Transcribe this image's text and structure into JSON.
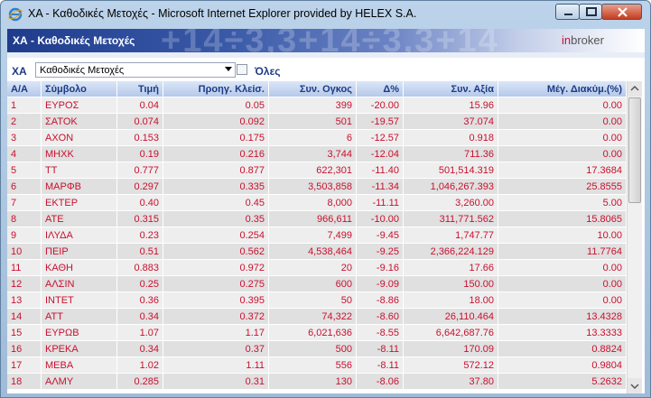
{
  "window": {
    "title": "ΧΑ - Καθοδικές Μετοχές - Microsoft Internet Explorer provided by HELEX S.A."
  },
  "banner": {
    "title": "ΧΑ - Καθοδικές Μετοχές",
    "brand_in": "in",
    "brand_broker": "broker"
  },
  "filter": {
    "label": "ΧΑ",
    "select_value": "Καθοδικές Μετοχές",
    "all_label": "Όλες",
    "all_checked": false
  },
  "table": {
    "columns": [
      "Α/Α",
      "Σύμβολο",
      "Τιμή",
      "Προηγ. Κλείσ.",
      "Συν. Ογκος",
      "Δ%",
      "Συν. Αξία",
      "Μέγ. Διακύμ.(%)"
    ],
    "rows": [
      [
        "1",
        "ΕΥΡΟΣ",
        "0.04",
        "0.05",
        "399",
        "-20.00",
        "15.96",
        "0.00"
      ],
      [
        "2",
        "ΣΑΤΟΚ",
        "0.074",
        "0.092",
        "501",
        "-19.57",
        "37.074",
        "0.00"
      ],
      [
        "3",
        "ΑΧΟΝ",
        "0.153",
        "0.175",
        "6",
        "-12.57",
        "0.918",
        "0.00"
      ],
      [
        "4",
        "ΜΗΧΚ",
        "0.19",
        "0.216",
        "3,744",
        "-12.04",
        "711.36",
        "0.00"
      ],
      [
        "5",
        "ΤΤ",
        "0.777",
        "0.877",
        "622,301",
        "-11.40",
        "501,514.319",
        "17.3684"
      ],
      [
        "6",
        "ΜΑΡΦΒ",
        "0.297",
        "0.335",
        "3,503,858",
        "-11.34",
        "1,046,267.393",
        "25.8555"
      ],
      [
        "7",
        "ΕΚΤΕΡ",
        "0.40",
        "0.45",
        "8,000",
        "-11.11",
        "3,260.00",
        "5.00"
      ],
      [
        "8",
        "ΑΤΕ",
        "0.315",
        "0.35",
        "966,611",
        "-10.00",
        "311,771.562",
        "15.8065"
      ],
      [
        "9",
        "ΙΛΥΔΑ",
        "0.23",
        "0.254",
        "7,499",
        "-9.45",
        "1,747.77",
        "10.00"
      ],
      [
        "10",
        "ΠΕΙΡ",
        "0.51",
        "0.562",
        "4,538,464",
        "-9.25",
        "2,366,224.129",
        "11.7764"
      ],
      [
        "11",
        "ΚΑΘΗ",
        "0.883",
        "0.972",
        "20",
        "-9.16",
        "17.66",
        "0.00"
      ],
      [
        "12",
        "ΑΛΣΙΝ",
        "0.25",
        "0.275",
        "600",
        "-9.09",
        "150.00",
        "0.00"
      ],
      [
        "13",
        "ΙΝΤΕΤ",
        "0.36",
        "0.395",
        "50",
        "-8.86",
        "18.00",
        "0.00"
      ],
      [
        "14",
        "ΑΤΤ",
        "0.34",
        "0.372",
        "74,322",
        "-8.60",
        "26,110.464",
        "13.4328"
      ],
      [
        "15",
        "ΕΥΡΩΒ",
        "1.07",
        "1.17",
        "6,021,636",
        "-8.55",
        "6,642,687.76",
        "13.3333"
      ],
      [
        "16",
        "ΚΡΕΚΑ",
        "0.34",
        "0.37",
        "500",
        "-8.11",
        "170.09",
        "0.8824"
      ],
      [
        "17",
        "ΜΕΒΑ",
        "1.02",
        "1.11",
        "556",
        "-8.11",
        "572.12",
        "0.9804"
      ],
      [
        "18",
        "ΑΛΜΥ",
        "0.285",
        "0.31",
        "130",
        "-8.06",
        "37.80",
        "5.2632"
      ]
    ]
  },
  "colors": {
    "value_text": "#c8102e",
    "header_text": "#1d3b84"
  }
}
